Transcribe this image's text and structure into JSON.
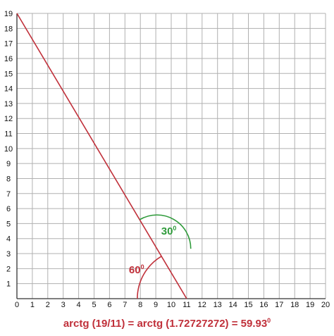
{
  "chart_data": {
    "type": "line",
    "x_ticks": [
      "0",
      "1",
      "2",
      "3",
      "4",
      "5",
      "6",
      "7",
      "8",
      "9",
      "10",
      "11",
      "12",
      "13",
      "14",
      "15",
      "16",
      "17",
      "18",
      "19",
      "20"
    ],
    "y_ticks": [
      "1",
      "2",
      "3",
      "4",
      "5",
      "6",
      "7",
      "8",
      "9",
      "10",
      "11",
      "12",
      "13",
      "14",
      "15",
      "16",
      "17",
      "18",
      "19"
    ],
    "xlim": [
      0,
      20
    ],
    "ylim": [
      0,
      19
    ],
    "grid": true,
    "series": [
      {
        "points": [
          [
            0,
            19
          ],
          [
            11,
            0
          ]
        ]
      }
    ],
    "annotations": [
      {
        "text": "30",
        "unit": "0",
        "color": "#2e9a3a"
      },
      {
        "text": "60",
        "unit": "0",
        "color": "#c0303a"
      }
    ],
    "formula": {
      "text": "arctg (19/11) = arctg (1.72727272) = 59.93",
      "unit": "0"
    }
  },
  "colors": {
    "line": "#c0303a",
    "angle_60": "#c0303a",
    "angle_30": "#2e9a3a",
    "grid": "#b0b0b0",
    "formula": "#c0303a"
  }
}
